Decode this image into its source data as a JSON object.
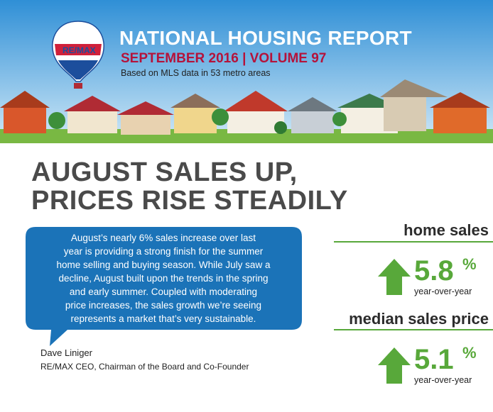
{
  "header": {
    "logo": "RE/MAX",
    "title": "NATIONAL HOUSING REPORT",
    "subtitle": "SEPTEMBER 2016 | VOLUME 97",
    "note": "Based on MLS data in 53 metro areas"
  },
  "headline": [
    "AUGUST SALES UP,",
    "PRICES RISE STEADILY"
  ],
  "quote": {
    "lines": [
      "August’s nearly 6% sales increase over last",
      "year is providing a strong finish for the summer",
      "home selling and buying season. While July saw a",
      "decline, August built upon the trends in the spring",
      "and early summer. Coupled with moderating",
      "price increases, the sales growth we’re seeing",
      "represents a market that’s very sustainable."
    ],
    "author": "Dave Liniger",
    "author_title": "RE/MAX CEO, Chairman of the Board and Co-Founder"
  },
  "stats": [
    {
      "label": "home sales",
      "value": "5.8",
      "unit": "%",
      "period": "year-over-year"
    },
    {
      "label": "median sales price",
      "value": "5.1",
      "unit": "%",
      "period": "year-over-year"
    }
  ]
}
